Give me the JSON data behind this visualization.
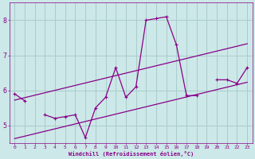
{
  "xlabel": "Windchill (Refroidissement éolien,°C)",
  "bg_color": "#cce8e8",
  "line_color": "#880088",
  "grid_color": "#aacccc",
  "x_data": [
    0,
    1,
    2,
    3,
    4,
    5,
    6,
    7,
    8,
    9,
    10,
    11,
    12,
    13,
    14,
    15,
    16,
    17,
    18,
    19,
    20,
    21,
    22,
    23
  ],
  "y_main": [
    5.9,
    5.7,
    null,
    5.3,
    5.2,
    5.25,
    5.3,
    4.65,
    5.5,
    5.8,
    6.65,
    5.8,
    6.1,
    8.0,
    8.05,
    8.1,
    7.3,
    5.85,
    5.85,
    null,
    6.3,
    6.3,
    6.2,
    6.65
  ],
  "regression_lower": [
    4.62,
    4.69,
    4.76,
    4.83,
    4.9,
    4.97,
    5.04,
    5.11,
    5.18,
    5.25,
    5.32,
    5.39,
    5.46,
    5.53,
    5.6,
    5.67,
    5.74,
    5.81,
    5.88,
    5.95,
    6.02,
    6.09,
    6.16,
    6.23
  ],
  "regression_upper": [
    5.72,
    5.79,
    5.86,
    5.93,
    6.0,
    6.07,
    6.14,
    6.21,
    6.28,
    6.35,
    6.42,
    6.49,
    6.56,
    6.63,
    6.7,
    6.77,
    6.84,
    6.91,
    6.98,
    7.05,
    7.12,
    7.19,
    7.26,
    7.33
  ],
  "ylim": [
    4.5,
    8.5
  ],
  "xlim": [
    -0.5,
    23.5
  ],
  "yticks": [
    5,
    6,
    7,
    8
  ],
  "xticks": [
    0,
    1,
    2,
    3,
    4,
    5,
    6,
    7,
    8,
    9,
    10,
    11,
    12,
    13,
    14,
    15,
    16,
    17,
    18,
    19,
    20,
    21,
    22,
    23
  ]
}
